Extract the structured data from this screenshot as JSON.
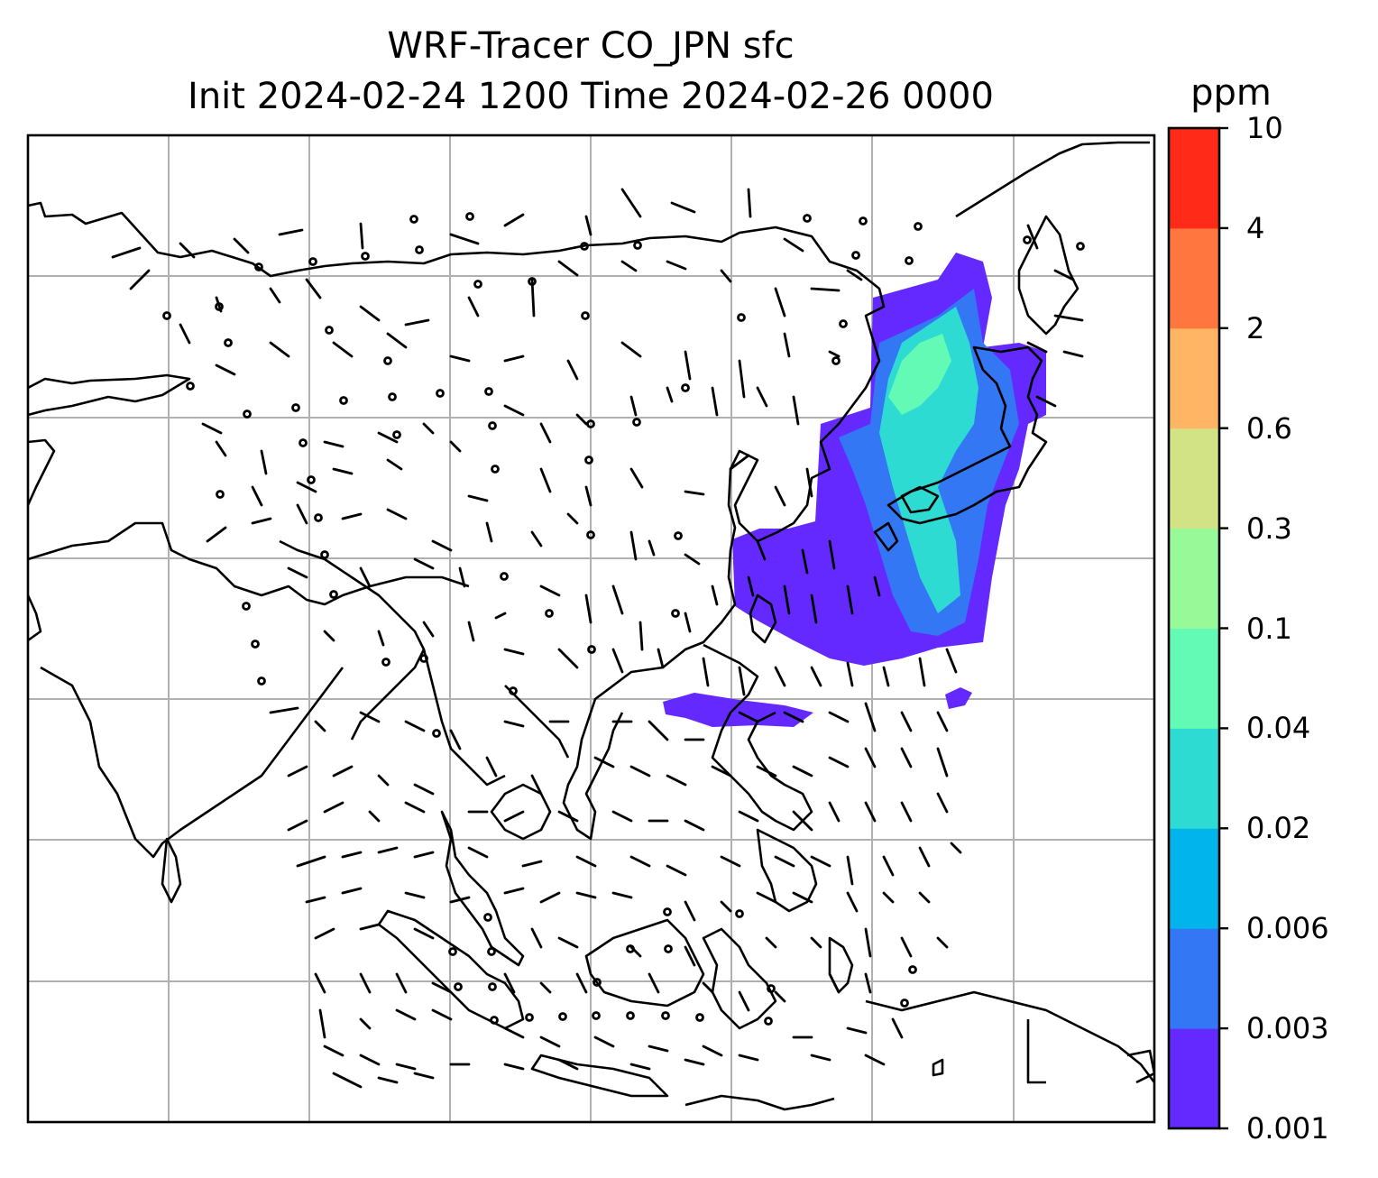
{
  "title": {
    "line1": "WRF-Tracer CO_JPN sfc",
    "line2": "Init 2024-02-24 1200 Time 2024-02-26 0000"
  },
  "colorbar": {
    "unit": "ppm",
    "levels": [
      "0.001",
      "0.003",
      "0.006",
      "0.02",
      "0.04",
      "0.1",
      "0.3",
      "0.6",
      "2",
      "4",
      "10"
    ],
    "colors": [
      "#6329ff",
      "#3377f4",
      "#02b4ec",
      "#2ddbd3",
      "#62fab5",
      "#98f998",
      "#d2e385",
      "#ffb563",
      "#ff763f",
      "#ff2a18"
    ]
  },
  "map": {
    "grid": true,
    "background": "#ffffff",
    "line_color": "#000000",
    "grid_color": "#b0b0b0"
  }
}
